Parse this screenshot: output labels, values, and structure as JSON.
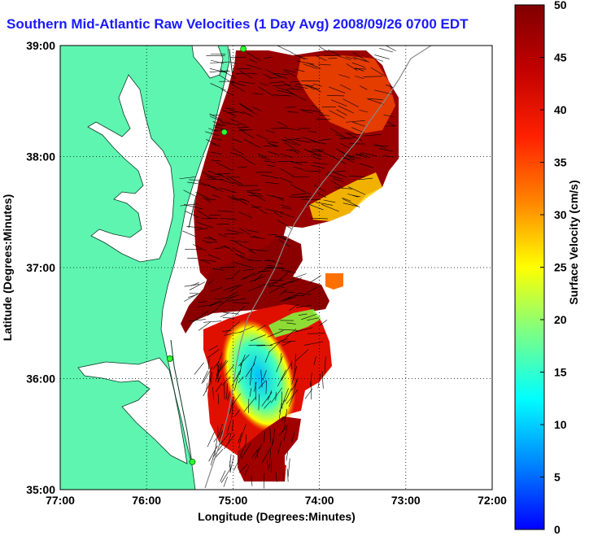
{
  "title": "Southern Mid-Atlantic Raw Velocities (1 Day Avg) 2008/09/26 0700 EDT",
  "map": {
    "x_axis_label": "Longitude (Degrees:Minutes)",
    "y_axis_label": "Latitude (Degrees:Minutes)",
    "x_ticks": [
      "77:00",
      "76:00",
      "75:00",
      "74:00",
      "73:00",
      "72:00"
    ],
    "y_ticks": [
      "39:00",
      "38:00",
      "37:00",
      "36:00",
      "35:00"
    ],
    "x_range_deg": [
      -77,
      -72
    ],
    "y_range_deg": [
      35,
      39
    ],
    "grid": "dotted",
    "land_color": "#5ef5b0",
    "ocean_color": "#ffffff"
  },
  "colorbar": {
    "label": "Surface Velocity (cm/s)",
    "ticks": [
      "50",
      "45",
      "40",
      "35",
      "30",
      "25",
      "20",
      "15",
      "10",
      "5",
      "0"
    ],
    "range": [
      0,
      50
    ],
    "colormap": "jet"
  },
  "sites": [
    {
      "lon": -74.88,
      "lat": 38.97
    },
    {
      "lon": -75.1,
      "lat": 38.22
    },
    {
      "lon": -75.73,
      "lat": 36.18
    },
    {
      "lon": -75.47,
      "lat": 35.25
    }
  ]
}
